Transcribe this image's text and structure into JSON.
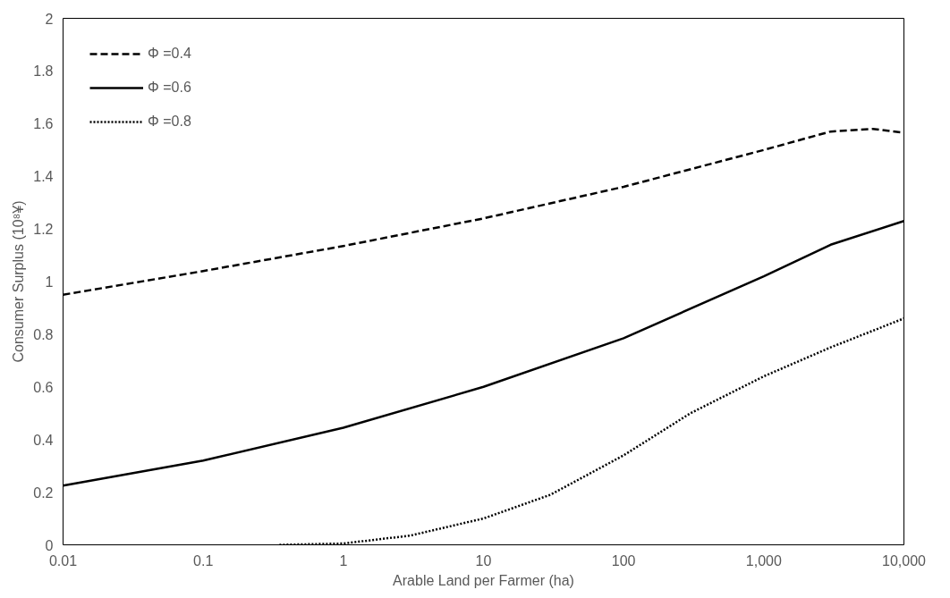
{
  "chart_data": {
    "type": "line",
    "xlabel": "Arable Land per Farmer (ha)",
    "ylabel": "Consumer Surplus (10⁸¥)",
    "log": "x",
    "xlim": [
      0.01,
      10000
    ],
    "ylim": [
      0,
      2
    ],
    "xticks": [
      0.01,
      0.1,
      1,
      10,
      100,
      {
        "value": 1000,
        "label": "1,000"
      },
      {
        "value": 10000,
        "label": "10,000"
      }
    ],
    "yticks": [
      0,
      0.2,
      0.4,
      0.6,
      0.8,
      1,
      1.2,
      1.4,
      1.6,
      1.8,
      2
    ],
    "grid": false,
    "legend": "top left",
    "marker": "none",
    "series": [
      {
        "name": "Φ =0.4",
        "color": "#000000",
        "line_style": "dashed",
        "x": [
          0.01,
          0.1,
          1,
          10,
          100,
          1000,
          3000,
          6000,
          10000
        ],
        "values": [
          0.95,
          1.04,
          1.135,
          1.24,
          1.36,
          1.5,
          1.57,
          1.58,
          1.565
        ]
      },
      {
        "name": "Φ =0.6",
        "color": "#000000",
        "line_style": "solid",
        "x": [
          0.01,
          0.1,
          1,
          10,
          100,
          1000,
          3000,
          10000
        ],
        "values": [
          0.225,
          0.32,
          0.445,
          0.6,
          0.785,
          1.02,
          1.14,
          1.23
        ]
      },
      {
        "name": "Φ =0.8",
        "color": "#000000",
        "line_style": "dotted",
        "x": [
          0.35,
          1,
          3,
          10,
          30,
          100,
          300,
          1000,
          3000,
          10000
        ],
        "values": [
          0,
          0.005,
          0.035,
          0.1,
          0.19,
          0.34,
          0.5,
          0.64,
          0.75,
          0.86
        ]
      }
    ]
  }
}
